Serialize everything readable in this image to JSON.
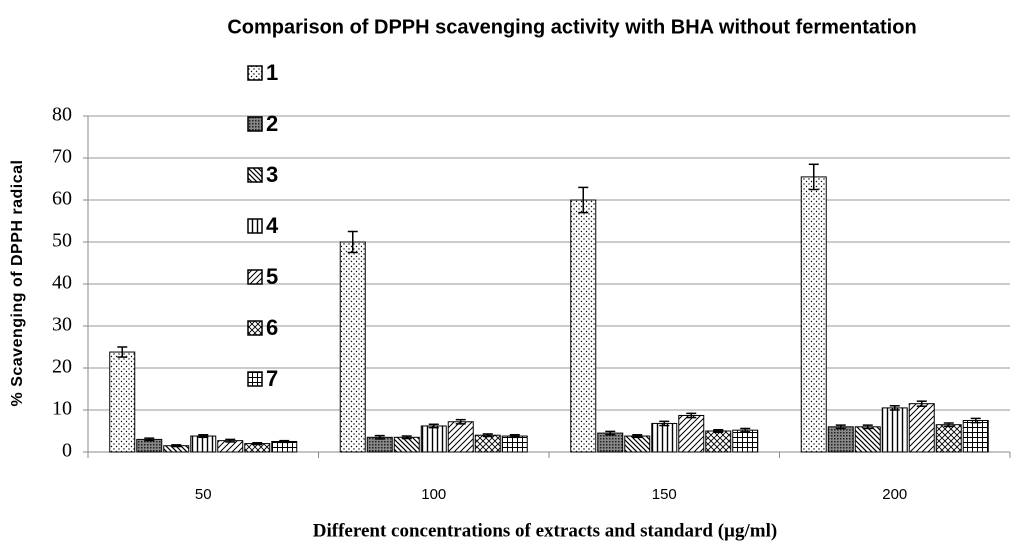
{
  "chart_data": {
    "type": "bar",
    "title": "Comparison of DPPH scavenging activity with BHA without fermentation",
    "x_label": "Different concentrations of extracts and standard (µg/ml)",
    "y_label": "% Scavenging of DPPH radical",
    "categories": [
      "50",
      "100",
      "150",
      "200"
    ],
    "ylim": [
      0,
      80
    ],
    "yticks": [
      0,
      10,
      20,
      30,
      40,
      50,
      60,
      70,
      80
    ],
    "grid": true,
    "series": [
      {
        "name": "1",
        "pattern": "dots",
        "values": [
          23.8,
          50,
          60,
          65.5
        ],
        "errors": [
          1.2,
          2.5,
          3,
          3
        ]
      },
      {
        "name": "2",
        "pattern": "dense",
        "values": [
          3,
          3.5,
          4.5,
          6
        ],
        "errors": [
          0.3,
          0.4,
          0.4,
          0.4
        ]
      },
      {
        "name": "3",
        "pattern": "diag",
        "values": [
          1.5,
          3.5,
          3.8,
          6
        ],
        "errors": [
          0.2,
          0.3,
          0.3,
          0.4
        ]
      },
      {
        "name": "4",
        "pattern": "vert",
        "values": [
          3.8,
          6.2,
          6.8,
          10.5
        ],
        "errors": [
          0.3,
          0.4,
          0.5,
          0.5
        ]
      },
      {
        "name": "5",
        "pattern": "diag2",
        "values": [
          2.7,
          7.2,
          8.7,
          11.5
        ],
        "errors": [
          0.3,
          0.5,
          0.5,
          0.6
        ]
      },
      {
        "name": "6",
        "pattern": "wave",
        "values": [
          2,
          4,
          5,
          6.5
        ],
        "errors": [
          0.2,
          0.3,
          0.3,
          0.4
        ]
      },
      {
        "name": "7",
        "pattern": "grid",
        "values": [
          2.5,
          3.8,
          5.2,
          7.5
        ],
        "errors": [
          0.2,
          0.3,
          0.4,
          0.5
        ]
      }
    ]
  }
}
